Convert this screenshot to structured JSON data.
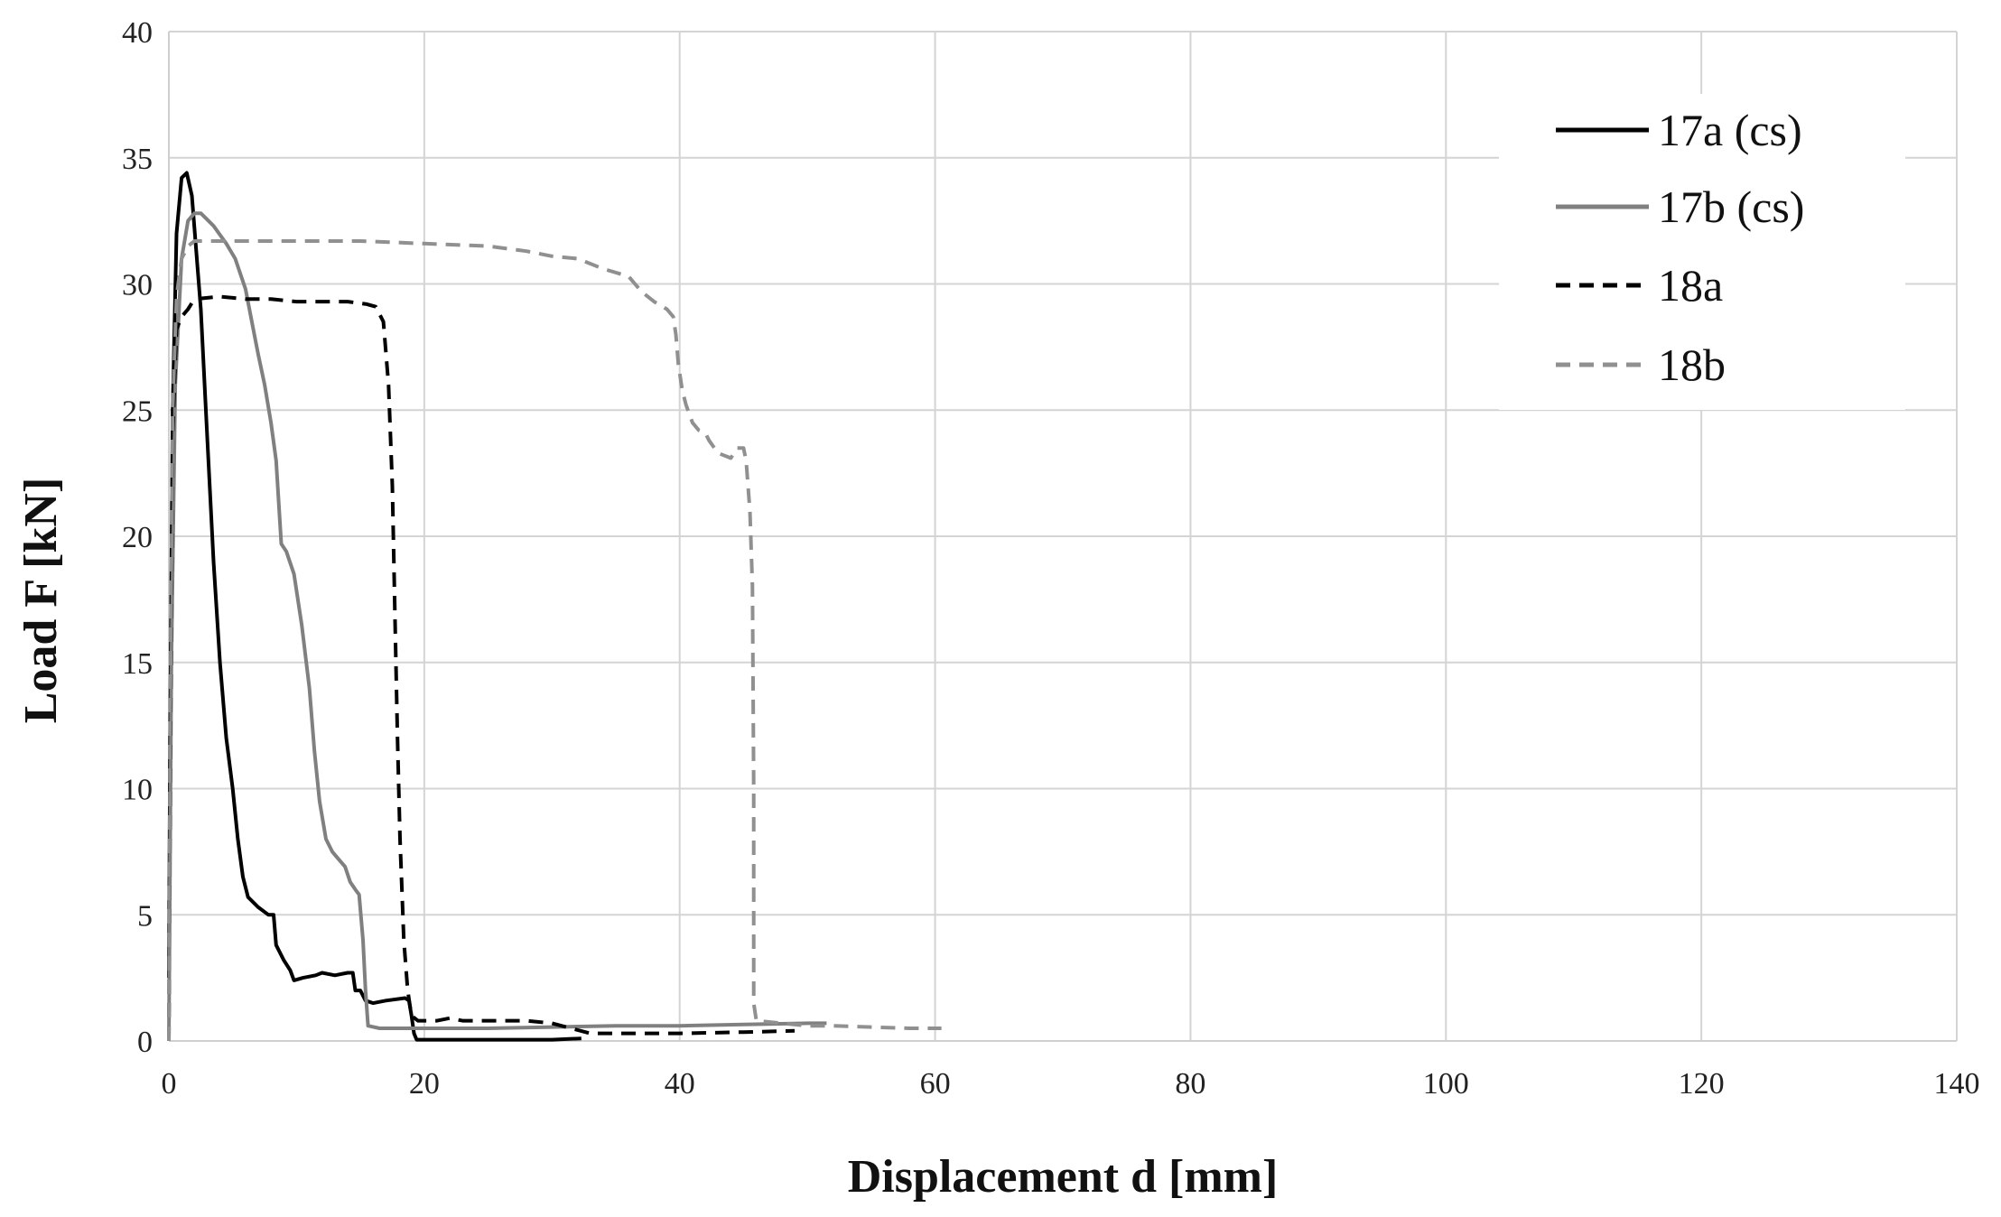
{
  "chart_data": {
    "type": "line",
    "xlabel": "Displacement d [mm]",
    "ylabel": "Load F [kN]",
    "xlim": [
      0,
      140
    ],
    "ylim": [
      0,
      40
    ],
    "xticks": [
      0,
      20,
      40,
      60,
      80,
      100,
      120,
      140
    ],
    "yticks": [
      0,
      5,
      10,
      15,
      20,
      25,
      30,
      35,
      40
    ],
    "grid": true,
    "legend_position": "top-right",
    "series": [
      {
        "name": "17a (cs)",
        "color": "#000000",
        "dash": "solid",
        "points": [
          [
            0,
            2.5
          ],
          [
            0.1,
            12
          ],
          [
            0.3,
            25
          ],
          [
            0.6,
            32
          ],
          [
            1.0,
            34.2
          ],
          [
            1.4,
            34.4
          ],
          [
            1.8,
            33.5
          ],
          [
            2.5,
            29
          ],
          [
            3.0,
            24
          ],
          [
            3.5,
            19
          ],
          [
            4.0,
            15
          ],
          [
            4.5,
            12
          ],
          [
            5.0,
            10
          ],
          [
            5.4,
            8
          ],
          [
            5.8,
            6.5
          ],
          [
            6.2,
            5.7
          ],
          [
            7.0,
            5.3
          ],
          [
            7.8,
            5.0
          ],
          [
            8.2,
            5.0
          ],
          [
            8.4,
            3.8
          ],
          [
            9.0,
            3.2
          ],
          [
            9.5,
            2.8
          ],
          [
            9.8,
            2.4
          ],
          [
            10.5,
            2.5
          ],
          [
            11.5,
            2.6
          ],
          [
            12.0,
            2.7
          ],
          [
            13.0,
            2.6
          ],
          [
            14.0,
            2.7
          ],
          [
            14.4,
            2.7
          ],
          [
            14.6,
            2.0
          ],
          [
            15.0,
            2.0
          ],
          [
            15.4,
            1.6
          ],
          [
            16.0,
            1.5
          ],
          [
            17.0,
            1.6
          ],
          [
            18.5,
            1.7
          ],
          [
            18.8,
            1.6
          ],
          [
            19.0,
            1.0
          ],
          [
            19.2,
            0.3
          ],
          [
            19.4,
            0.05
          ],
          [
            22.0,
            0.05
          ],
          [
            25.0,
            0.05
          ],
          [
            28.0,
            0.05
          ],
          [
            30.0,
            0.05
          ],
          [
            32.3,
            0.1
          ]
        ]
      },
      {
        "name": "17b (cs)",
        "color": "#808080",
        "dash": "solid",
        "points": [
          [
            0,
            0
          ],
          [
            0.2,
            15
          ],
          [
            0.5,
            26
          ],
          [
            1.0,
            31
          ],
          [
            1.5,
            32.5
          ],
          [
            2.0,
            32.8
          ],
          [
            2.5,
            32.8
          ],
          [
            3.5,
            32.3
          ],
          [
            4.5,
            31.6
          ],
          [
            5.2,
            31.0
          ],
          [
            6.0,
            29.8
          ],
          [
            6.5,
            28.5
          ],
          [
            7.0,
            27.2
          ],
          [
            7.5,
            26.0
          ],
          [
            8.0,
            24.5
          ],
          [
            8.4,
            23.0
          ],
          [
            8.8,
            19.7
          ],
          [
            9.2,
            19.4
          ],
          [
            9.8,
            18.5
          ],
          [
            10.4,
            16.5
          ],
          [
            11.0,
            14.0
          ],
          [
            11.4,
            11.5
          ],
          [
            11.8,
            9.5
          ],
          [
            12.3,
            8.0
          ],
          [
            12.8,
            7.5
          ],
          [
            13.3,
            7.2
          ],
          [
            13.8,
            6.9
          ],
          [
            14.2,
            6.3
          ],
          [
            14.6,
            6.0
          ],
          [
            14.9,
            5.8
          ],
          [
            15.2,
            4.0
          ],
          [
            15.4,
            2.0
          ],
          [
            15.6,
            0.6
          ],
          [
            16.5,
            0.5
          ],
          [
            20.0,
            0.5
          ],
          [
            25.0,
            0.5
          ],
          [
            30.0,
            0.55
          ],
          [
            35.0,
            0.6
          ],
          [
            40.0,
            0.6
          ],
          [
            45.0,
            0.65
          ],
          [
            50.0,
            0.7
          ],
          [
            51.5,
            0.7
          ]
        ]
      },
      {
        "name": "18a",
        "color": "#000000",
        "dash": "dashed",
        "points": [
          [
            0,
            0
          ],
          [
            0.1,
            10
          ],
          [
            0.3,
            24
          ],
          [
            0.6,
            28.2
          ],
          [
            1.0,
            28.7
          ],
          [
            1.5,
            29.0
          ],
          [
            2.0,
            29.4
          ],
          [
            4.0,
            29.5
          ],
          [
            6.0,
            29.4
          ],
          [
            8.0,
            29.4
          ],
          [
            10.0,
            29.3
          ],
          [
            12.0,
            29.3
          ],
          [
            14.0,
            29.3
          ],
          [
            15.5,
            29.2
          ],
          [
            16.2,
            29.1
          ],
          [
            16.8,
            28.5
          ],
          [
            17.2,
            26.0
          ],
          [
            17.5,
            22.0
          ],
          [
            17.7,
            17.0
          ],
          [
            17.9,
            12.0
          ],
          [
            18.1,
            8.0
          ],
          [
            18.4,
            4.0
          ],
          [
            18.7,
            2.0
          ],
          [
            19.0,
            1.0
          ],
          [
            19.5,
            0.8
          ],
          [
            21.0,
            0.8
          ],
          [
            22.0,
            0.9
          ],
          [
            23.0,
            0.8
          ],
          [
            25.0,
            0.8
          ],
          [
            28.0,
            0.8
          ],
          [
            30.0,
            0.7
          ],
          [
            31.5,
            0.5
          ],
          [
            33.0,
            0.3
          ],
          [
            35.0,
            0.3
          ],
          [
            40.0,
            0.3
          ],
          [
            45.0,
            0.35
          ],
          [
            49.0,
            0.4
          ]
        ]
      },
      {
        "name": "18b",
        "color": "#909090",
        "dash": "dashed",
        "points": [
          [
            0,
            0
          ],
          [
            0.1,
            12
          ],
          [
            0.3,
            25
          ],
          [
            0.6,
            29.5
          ],
          [
            1.0,
            31.0
          ],
          [
            1.5,
            31.5
          ],
          [
            2.0,
            31.7
          ],
          [
            5.0,
            31.7
          ],
          [
            10.0,
            31.7
          ],
          [
            15.0,
            31.7
          ],
          [
            20.0,
            31.6
          ],
          [
            25.0,
            31.5
          ],
          [
            28.0,
            31.3
          ],
          [
            30.0,
            31.1
          ],
          [
            32.0,
            31.0
          ],
          [
            34.0,
            30.6
          ],
          [
            36.0,
            30.3
          ],
          [
            37.0,
            29.7
          ],
          [
            38.0,
            29.3
          ],
          [
            39.0,
            29.0
          ],
          [
            39.5,
            28.7
          ],
          [
            39.7,
            28.0
          ],
          [
            39.9,
            26.8
          ],
          [
            40.2,
            25.8
          ],
          [
            40.5,
            25.2
          ],
          [
            41.0,
            24.5
          ],
          [
            41.5,
            24.2
          ],
          [
            42.0,
            24.1
          ],
          [
            42.3,
            23.8
          ],
          [
            43.0,
            23.3
          ],
          [
            44.0,
            23.1
          ],
          [
            44.5,
            23.5
          ],
          [
            45.0,
            23.5
          ],
          [
            45.2,
            23.0
          ],
          [
            45.5,
            21.0
          ],
          [
            45.7,
            18.0
          ],
          [
            45.8,
            10.0
          ],
          [
            45.8,
            1.5
          ],
          [
            46.0,
            0.8
          ],
          [
            48.0,
            0.7
          ],
          [
            50.0,
            0.6
          ],
          [
            52.0,
            0.6
          ],
          [
            55.0,
            0.55
          ],
          [
            58.0,
            0.5
          ],
          [
            60.5,
            0.5
          ]
        ]
      }
    ]
  }
}
